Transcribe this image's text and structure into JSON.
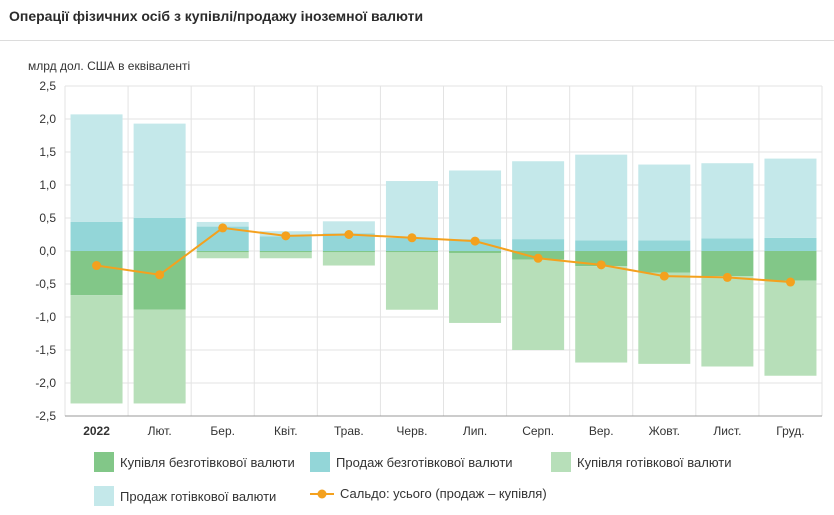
{
  "page": {
    "title": "Операції фізичних осіб з купівлі/продажу іноземної валюти",
    "unit_label": "млрд дол. США в еквіваленті"
  },
  "colors": {
    "cashless_buy": "#82c788",
    "cashless_sell": "#93d6d8",
    "cash_buy": "#b7dfb9",
    "cash_sell": "#c4e8ea",
    "balance": "#f4a11e",
    "grid": "#e3e3e3",
    "axis": "#999999"
  },
  "legend": [
    {
      "key": "cashless_buy",
      "label": "Купівля безготівкової валюти",
      "icon": "swatch"
    },
    {
      "key": "cashless_sell",
      "label": "Продаж безготівкової валюти",
      "icon": "swatch"
    },
    {
      "key": "cash_buy",
      "label": "Купівля готівкової валюти",
      "icon": "swatch"
    },
    {
      "key": "cash_sell",
      "label": "Продаж готівкової валюти",
      "icon": "swatch"
    },
    {
      "key": "balance",
      "label": "Сальдо: усього (продаж – купівля)",
      "icon": "line-marker"
    }
  ],
  "chart_data": {
    "type": "bar",
    "stacked": true,
    "title": "Операції фізичних осіб з купівлі/продажу іноземної валюти",
    "ylabel": "млрд дол. США в еквіваленті",
    "ylim": [
      -2.5,
      2.5
    ],
    "y_ticks": [
      "2,5",
      "2,0",
      "1,5",
      "1,0",
      "0,5",
      "0,0",
      "-0,5",
      "-1,0",
      "-1,5",
      "-2,0",
      "-2,5"
    ],
    "categories": [
      "2022",
      "Лют.",
      "Бер.",
      "Квіт.",
      "Трав.",
      "Черв.",
      "Лип.",
      "Серп.",
      "Вер.",
      "Жовт.",
      "Лист.",
      "Груд."
    ],
    "bold_categories": [
      "2022"
    ],
    "grid": true,
    "legend_position": "bottom",
    "series": [
      {
        "key": "cashless_sell",
        "name": "Продаж безготівкової валюти",
        "type": "bar",
        "values": [
          0.44,
          0.5,
          0.37,
          0.22,
          0.27,
          0.2,
          0.18,
          0.18,
          0.16,
          0.16,
          0.19,
          0.2
        ]
      },
      {
        "key": "cash_sell",
        "name": "Продаж готівкової валюти",
        "type": "bar",
        "values": [
          1.63,
          1.43,
          0.07,
          0.08,
          0.18,
          0.86,
          1.04,
          1.18,
          1.3,
          1.15,
          1.14,
          1.2
        ]
      },
      {
        "key": "cashless_buy",
        "name": "Купівля безготівкової валюти",
        "type": "bar",
        "values": [
          -0.67,
          -0.89,
          -0.02,
          -0.02,
          -0.02,
          -0.02,
          -0.03,
          -0.13,
          -0.23,
          -0.33,
          -0.38,
          -0.45
        ]
      },
      {
        "key": "cash_buy",
        "name": "Купівля готівкової валюти",
        "type": "bar",
        "values": [
          -1.64,
          -1.42,
          -0.09,
          -0.09,
          -0.2,
          -0.87,
          -1.06,
          -1.37,
          -1.46,
          -1.38,
          -1.37,
          -1.44
        ]
      },
      {
        "key": "balance",
        "name": "Сальдо: усього (продаж – купівля)",
        "type": "line",
        "values": [
          -0.22,
          -0.36,
          0.35,
          0.23,
          0.25,
          0.2,
          0.15,
          -0.11,
          -0.21,
          -0.38,
          -0.4,
          -0.47
        ]
      }
    ]
  }
}
